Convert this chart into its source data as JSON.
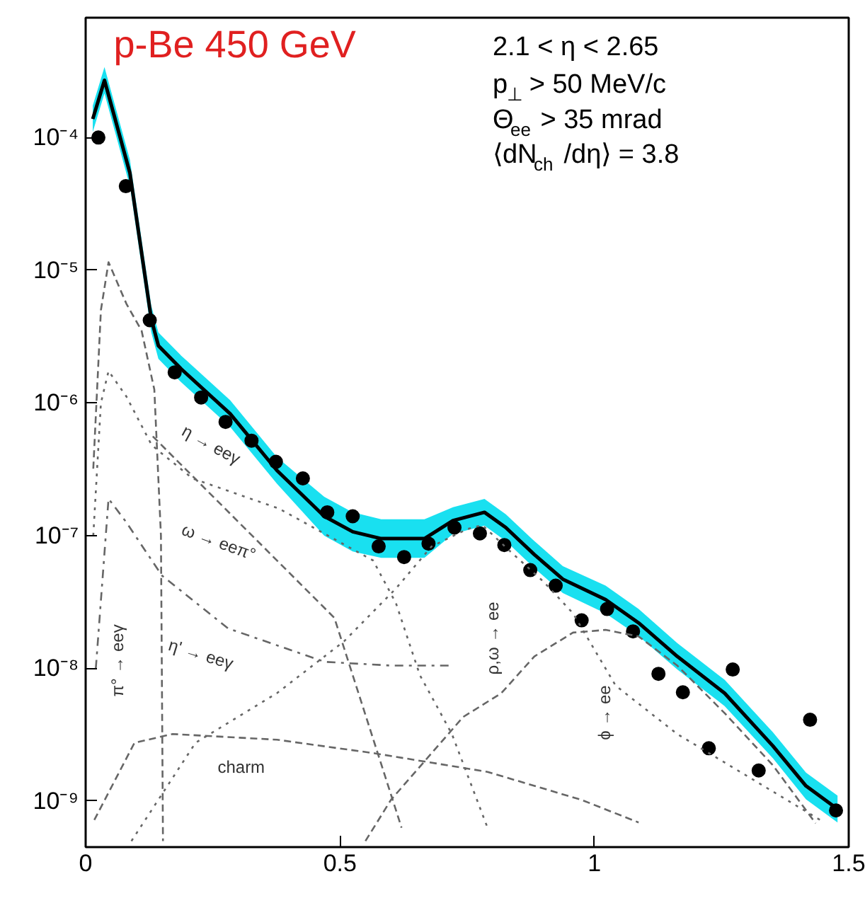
{
  "chart_data": {
    "type": "line",
    "xlim": [
      0,
      1.5
    ],
    "xticks": [
      0,
      0.5,
      1,
      1.5
    ],
    "ylim": [
      4.5e-10,
      0.0008
    ],
    "log": true,
    "yticks": [
      {
        "value": 1e-09,
        "label": "10⁻⁹"
      },
      {
        "value": 1e-08,
        "label": "10⁻⁸"
      },
      {
        "value": 1e-07,
        "label": "10⁻⁷"
      },
      {
        "value": 1e-06,
        "label": "10⁻⁶"
      },
      {
        "value": 1e-05,
        "label": "10⁻⁵"
      },
      {
        "value": 0.0001,
        "label": "10⁻⁴"
      }
    ],
    "grid": false,
    "series": [
      {
        "line_style": "solid",
        "color": "#000000",
        "x": [
          0.014,
          0.037,
          0.087,
          0.129,
          0.143,
          0.188,
          0.284,
          0.376,
          0.469,
          0.525,
          0.581,
          0.666,
          0.722,
          0.784,
          0.826,
          0.882,
          0.938,
          1.022,
          1.087,
          1.163,
          1.256,
          1.351,
          1.416,
          1.478
        ],
        "values": [
          0.000138,
          0.00027,
          5.4e-05,
          4.3e-06,
          2.7e-06,
          1.8e-06,
          8.3e-07,
          3.1e-07,
          1.4e-07,
          1.07e-07,
          9.5e-08,
          9.5e-08,
          1.3e-07,
          1.5e-07,
          1.15e-07,
          7.2e-08,
          4.7e-08,
          3.3e-08,
          2.2e-08,
          1.23e-08,
          6.5e-09,
          2.6e-09,
          1.3e-09,
          8.7e-10
        ],
        "lower": [
          0.00011,
          0.000215,
          4.3e-05,
          3.4e-06,
          2.15e-06,
          1.43e-06,
          6.6e-07,
          2.46e-07,
          1e-07,
          7.6e-08,
          6.8e-08,
          6.8e-08,
          1.03e-07,
          1.19e-07,
          9.1e-08,
          5.7e-08,
          3.7e-08,
          2.6e-08,
          1.75e-08,
          9.8e-09,
          5.2e-09,
          2.1e-09,
          1.03e-09,
          6.9e-10
        ],
        "upper": [
          0.000174,
          0.00034,
          6.8e-05,
          5.4e-06,
          3.4e-06,
          2.27e-06,
          1.05e-06,
          3.9e-07,
          1.96e-07,
          1.5e-07,
          1.33e-07,
          1.33e-07,
          1.64e-07,
          1.89e-07,
          1.45e-07,
          9.1e-08,
          5.9e-08,
          4.2e-08,
          2.8e-08,
          1.55e-08,
          8.2e-09,
          3.3e-09,
          1.64e-09,
          1.1e-09
        ]
      },
      {
        "type": "scatter",
        "marker": "circle",
        "color": "#000000",
        "x": [
          0.025,
          0.079,
          0.126,
          0.175,
          0.227,
          0.275,
          0.326,
          0.374,
          0.427,
          0.475,
          0.525,
          0.576,
          0.626,
          0.674,
          0.725,
          0.775,
          0.823,
          0.874,
          0.924,
          0.975,
          1.025,
          1.076,
          1.126,
          1.174,
          1.225,
          1.272,
          1.323,
          1.424,
          1.475
        ],
        "values": [
          0.0001,
          4.3e-05,
          4.2e-06,
          1.7e-06,
          1.1e-06,
          7.2e-07,
          5.2e-07,
          3.6e-07,
          2.7e-07,
          1.5e-07,
          1.4e-07,
          8.3e-08,
          6.9e-08,
          8.7e-08,
          1.15e-07,
          1.04e-07,
          8.5e-08,
          5.5e-08,
          4.2e-08,
          2.3e-08,
          2.8e-08,
          1.9e-08,
          9.1e-09,
          6.6e-09,
          2.5e-09,
          9.8e-09,
          1.7e-09,
          4.1e-09,
          8.5e-10
        ]
      },
      {
        "line_style": "dashed",
        "color": "#666666",
        "x": [
          0.015,
          0.03,
          0.045,
          0.08,
          0.11,
          0.135,
          0.148,
          0.152
        ],
        "values": [
          3.2e-07,
          5e-06,
          1.15e-05,
          5.6e-06,
          3.5e-06,
          1.26e-06,
          1e-07,
          5e-10
        ]
      },
      {
        "line_style": "dotted",
        "color": "#666666",
        "x": [
          0.015,
          0.03,
          0.045,
          0.08,
          0.13,
          0.21,
          0.38,
          0.565,
          0.61,
          0.657,
          0.72,
          0.79
        ],
        "values": [
          1e-07,
          1e-06,
          1.74e-06,
          1.12e-06,
          4.8e-07,
          2.7e-07,
          1.6e-07,
          6.5e-08,
          3.1e-08,
          8.9e-09,
          3.2e-09,
          6.3e-10
        ]
      },
      {
        "line_style": "dashdot",
        "color": "#666666",
        "x": [
          0.02,
          0.045,
          0.08,
          0.15,
          0.28,
          0.47,
          0.6,
          0.72
        ],
        "values": [
          1e-08,
          1.9e-07,
          1.26e-07,
          5e-08,
          2e-08,
          1.12e-08,
          1.05e-08,
          1.05e-08
        ]
      },
      {
        "line_style": "dashed",
        "color": "#666666",
        "x": [
          0.132,
          0.489,
          0.621
        ],
        "values": [
          5.6e-07,
          2.4e-08,
          6.3e-10
        ]
      },
      {
        "line_style": "dotted",
        "color": "#666666",
        "x": [
          0.09,
          0.216,
          0.376,
          0.508,
          0.61,
          0.68,
          0.75,
          0.78,
          0.83,
          0.9,
          0.958,
          1.042,
          1.163,
          1.444
        ],
        "values": [
          5e-10,
          2.75e-09,
          6.5e-09,
          1.6e-08,
          4e-08,
          8.3e-08,
          1.12e-07,
          1.2e-07,
          7.9e-08,
          4.5e-08,
          2.6e-08,
          7.4e-09,
          3.2e-09,
          7.2e-10
        ]
      },
      {
        "line_style": "dashed",
        "color": "#666666",
        "x": [
          0.55,
          0.6,
          0.742,
          0.817,
          0.882,
          0.958,
          1.022,
          1.087,
          1.163,
          1.256,
          1.351,
          1.435
        ],
        "values": [
          5e-10,
          1.02e-09,
          4.3e-09,
          6.5e-09,
          1.23e-08,
          1.86e-08,
          1.95e-08,
          1.74e-08,
          1.05e-08,
          4.6e-09,
          1.86e-09,
          6.8e-10
        ]
      },
      {
        "line_style": "dashed",
        "color": "#666666",
        "x": [
          0.017,
          0.096,
          0.171,
          0.376,
          0.565,
          0.79,
          0.975,
          1.087
        ],
        "values": [
          7.2e-10,
          2.75e-09,
          3.2e-09,
          2.9e-09,
          2.3e-09,
          1.66e-09,
          1.02e-09,
          6.9e-10
        ]
      }
    ],
    "annotations": [
      "p-Be 450 GeV",
      "2.1 < η < 2.65",
      "p$_{⊥}$ > 50 MeV/c",
      "Θ$_{ee}$ > 35 mrad",
      "⟨dN$_{ch}$ /dη⟩ = 3.8",
      "η → eeγ",
      "ω → eeπ°",
      "η' → eeγ",
      "π° → eeγ",
      "charm",
      "ρ,ω → ee",
      "ϕ → ee"
    ]
  }
}
